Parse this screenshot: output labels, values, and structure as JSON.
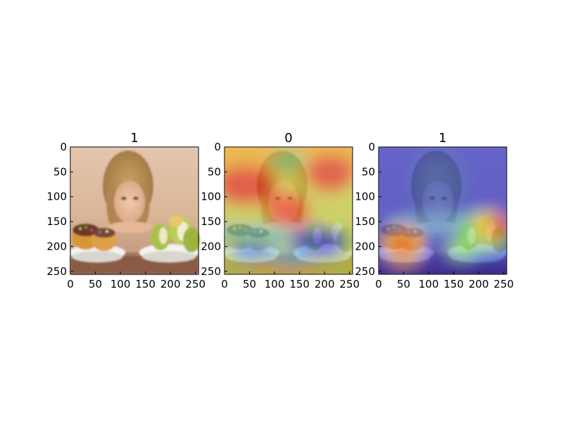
{
  "chart_data": [
    {
      "type": "heatmap",
      "content": "photo",
      "title": "1",
      "xlim": [
        0,
        256
      ],
      "ylim": [
        256,
        0
      ],
      "xticks": [
        0,
        50,
        100,
        150,
        200,
        250
      ],
      "yticks": [
        0,
        50,
        100,
        150,
        200,
        250
      ],
      "colormap": "none"
    },
    {
      "type": "heatmap",
      "content": "photo-with-heatmap-overlay",
      "title": "0",
      "xlim": [
        0,
        256
      ],
      "ylim": [
        256,
        0
      ],
      "xticks": [
        0,
        50,
        100,
        150,
        200,
        250
      ],
      "yticks": [
        0,
        50,
        100,
        150,
        200,
        250
      ],
      "colormap": "jet",
      "hot_regions": [
        "top-left",
        "top-right",
        "upper-center"
      ],
      "cold_regions": [
        "lower-right bowl",
        "lower-left bowl"
      ]
    },
    {
      "type": "heatmap",
      "content": "photo-with-heatmap-overlay",
      "title": "1",
      "xlim": [
        0,
        256
      ],
      "ylim": [
        256,
        0
      ],
      "xticks": [
        0,
        50,
        100,
        150,
        200,
        250
      ],
      "yticks": [
        0,
        50,
        100,
        150,
        200,
        250
      ],
      "colormap": "jet",
      "hot_regions": [
        "right apples",
        "left donuts"
      ],
      "cold_regions": [
        "top",
        "face",
        "bottom"
      ]
    }
  ]
}
